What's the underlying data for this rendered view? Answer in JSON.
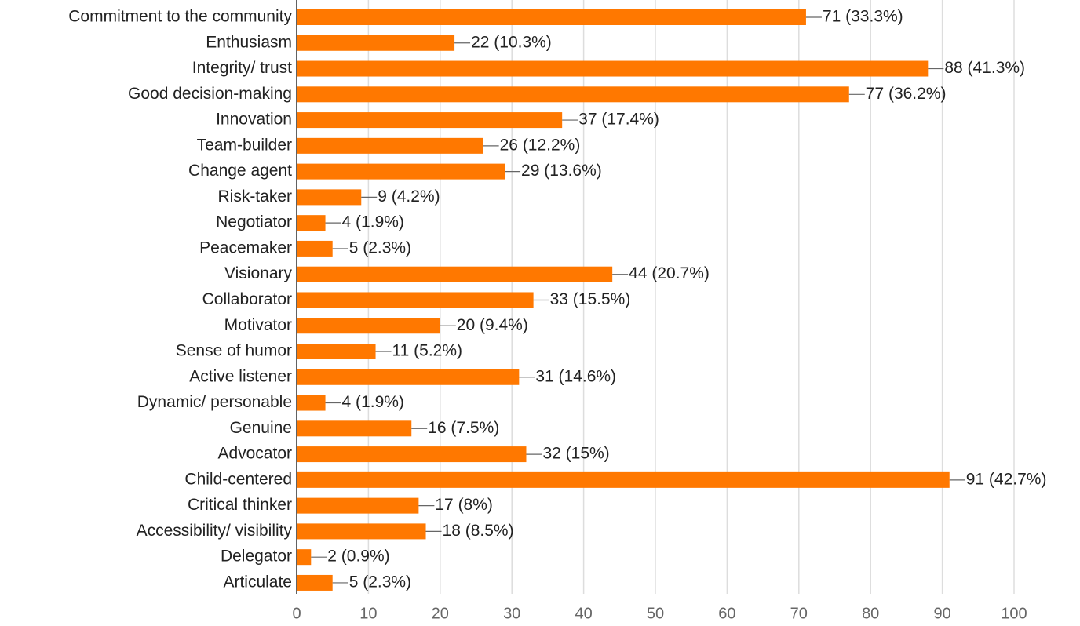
{
  "chart_data": {
    "type": "bar",
    "orientation": "horizontal",
    "color": "#ff7800",
    "grid": true,
    "categories": [
      "Commitment to the community",
      "Enthusiasm",
      "Integrity/ trust",
      "Good decision-making",
      "Innovation",
      "Team-builder",
      "Change agent",
      "Risk-taker",
      "Negotiator",
      "Peacemaker",
      "Visionary",
      "Collaborator",
      "Motivator",
      "Sense of humor",
      "Active listener",
      "Dynamic/ personable",
      "Genuine",
      "Advocator",
      "Child-centered",
      "Critical thinker",
      "Accessibility/ visibility",
      "Delegator",
      "Articulate"
    ],
    "values": [
      71,
      22,
      88,
      77,
      37,
      26,
      29,
      9,
      4,
      5,
      44,
      33,
      20,
      11,
      31,
      4,
      16,
      32,
      91,
      17,
      18,
      2,
      5
    ],
    "value_labels": [
      "71 (33.3%)",
      "22 (10.3%)",
      "88 (41.3%)",
      "77 (36.2%)",
      "37 (17.4%)",
      "26 (12.2%)",
      "29 (13.6%)",
      "9 (4.2%)",
      "4 (1.9%)",
      "5 (2.3%)",
      "44 (20.7%)",
      "33 (15.5%)",
      "20 (9.4%)",
      "11 (5.2%)",
      "31 (14.6%)",
      "4 (1.9%)",
      "16 (7.5%)",
      "32 (15%)",
      "91 (42.7%)",
      "17 (8%)",
      "18 (8.5%)",
      "2 (0.9%)",
      "5 (2.3%)"
    ],
    "xlim": [
      0,
      100
    ],
    "xticks": [
      0,
      10,
      20,
      30,
      40,
      50,
      60,
      70,
      80,
      90,
      100
    ]
  }
}
